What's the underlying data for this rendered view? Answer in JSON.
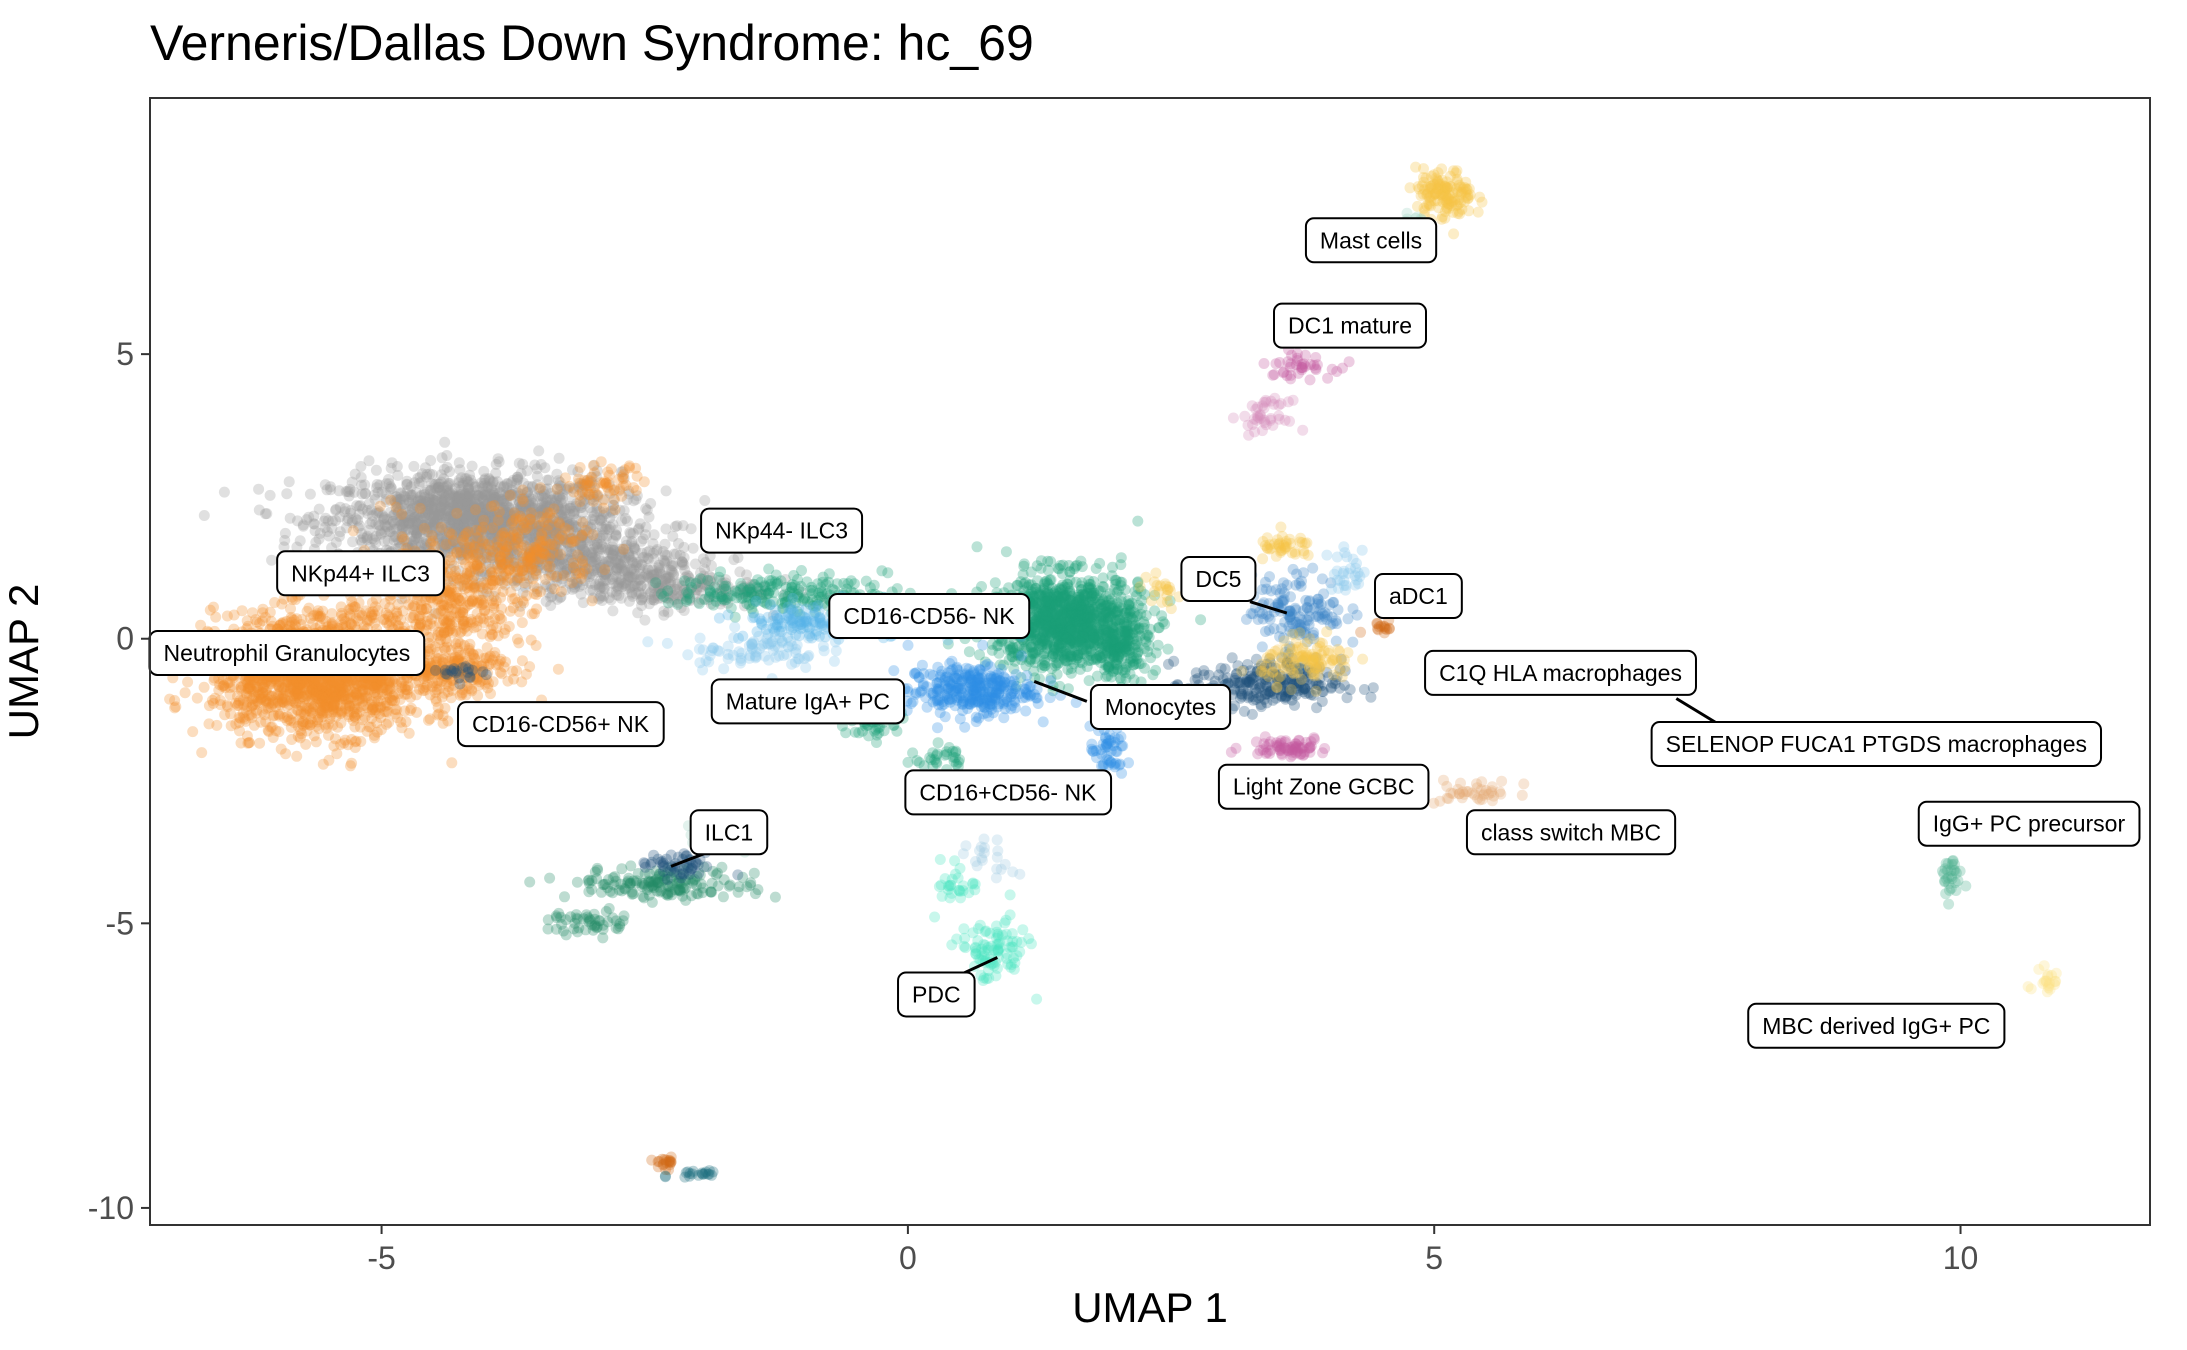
{
  "chart_data": {
    "type": "scatter",
    "title": "Verneris/Dallas Down Syndrome: hc_69",
    "xlabel": "UMAP 1",
    "ylabel": "UMAP 2",
    "xlim": [
      -7.2,
      11.8
    ],
    "ylim": [
      -10.3,
      9.5
    ],
    "xticks": [
      -5,
      0,
      5,
      10
    ],
    "yticks": [
      5,
      0,
      -5,
      -10
    ],
    "grid": false,
    "legend": "none",
    "clusters": [
      {
        "color": "#999999",
        "blobs": [
          [
            -4.1,
            2.1,
            1.25,
            0.75,
            1600
          ],
          [
            -3.1,
            1.4,
            1.0,
            0.5,
            400
          ],
          [
            -2.4,
            0.9,
            0.9,
            0.35,
            260
          ]
        ]
      },
      {
        "color": "#f28e2b",
        "blobs": [
          [
            -5.6,
            -0.6,
            0.9,
            0.95,
            1700
          ],
          [
            -4.4,
            0.6,
            0.75,
            1.1,
            500
          ],
          [
            -3.6,
            1.6,
            0.6,
            0.7,
            200
          ],
          [
            -2.9,
            2.7,
            0.35,
            0.3,
            60
          ],
          [
            -4.3,
            -0.6,
            0.5,
            0.35,
            150
          ]
        ]
      },
      {
        "color": "#1b9e77",
        "blobs": [
          [
            1.5,
            0.3,
            0.65,
            0.75,
            1100
          ],
          [
            2.0,
            -0.2,
            0.25,
            0.45,
            150
          ],
          [
            -1.2,
            0.8,
            0.9,
            0.3,
            200
          ],
          [
            -0.3,
            -1.4,
            0.25,
            0.35,
            50
          ],
          [
            0.3,
            -2.1,
            0.2,
            0.2,
            30
          ]
        ]
      },
      {
        "color": "#238b68",
        "blobs": [
          [
            -2.3,
            -4.3,
            0.8,
            0.25,
            160
          ],
          [
            -3.0,
            -5.0,
            0.35,
            0.2,
            50
          ]
        ]
      },
      {
        "color": "#1f4e79",
        "blobs": [
          [
            -2.2,
            -4.0,
            0.35,
            0.2,
            50
          ],
          [
            3.4,
            -0.8,
            0.65,
            0.4,
            250
          ],
          [
            -4.2,
            -0.6,
            0.2,
            0.15,
            20
          ]
        ]
      },
      {
        "color": "#56b4e9",
        "blobs": [
          [
            0.3,
            0.4,
            0.5,
            0.3,
            120
          ],
          [
            -0.9,
            0.3,
            0.7,
            0.3,
            150
          ]
        ]
      },
      {
        "color": "#2e8ee6",
        "blobs": [
          [
            0.6,
            -0.9,
            0.55,
            0.4,
            320
          ],
          [
            1.9,
            -2.0,
            0.15,
            0.4,
            50
          ]
        ]
      },
      {
        "color": "#3a86c8",
        "blobs": [
          [
            3.7,
            0.5,
            0.4,
            0.6,
            140
          ]
        ]
      },
      {
        "color": "#87c6ec",
        "blobs": [
          [
            4.2,
            1.2,
            0.2,
            0.35,
            30
          ],
          [
            -1.5,
            -0.2,
            0.6,
            0.3,
            80
          ]
        ]
      },
      {
        "color": "#f6c445",
        "blobs": [
          [
            5.1,
            7.8,
            0.25,
            0.4,
            140
          ],
          [
            3.8,
            -0.4,
            0.4,
            0.35,
            110
          ],
          [
            3.6,
            1.6,
            0.25,
            0.2,
            40
          ],
          [
            2.4,
            0.8,
            0.2,
            0.25,
            20
          ]
        ]
      },
      {
        "color": "#9ed4c4",
        "blobs": [
          [
            4.8,
            7.2,
            0.15,
            0.3,
            20
          ],
          [
            -1.8,
            -3.5,
            0.3,
            0.3,
            20
          ]
        ]
      },
      {
        "color": "#c45ba0",
        "blobs": [
          [
            3.6,
            -1.9,
            0.35,
            0.15,
            70
          ],
          [
            3.7,
            4.8,
            0.3,
            0.2,
            40
          ]
        ]
      },
      {
        "color": "#d38cb8",
        "blobs": [
          [
            3.4,
            3.9,
            0.2,
            0.25,
            40
          ]
        ]
      },
      {
        "color": "#e6a874",
        "blobs": [
          [
            5.4,
            -2.7,
            0.35,
            0.2,
            40
          ]
        ]
      },
      {
        "color": "#cf6b16",
        "blobs": [
          [
            -2.3,
            -9.2,
            0.1,
            0.1,
            20
          ],
          [
            4.5,
            0.2,
            0.15,
            0.08,
            15
          ]
        ]
      },
      {
        "color": "#4daf90",
        "blobs": [
          [
            9.9,
            -4.2,
            0.1,
            0.35,
            30
          ]
        ]
      },
      {
        "color": "#48e6c0",
        "blobs": [
          [
            0.8,
            -5.5,
            0.3,
            0.5,
            90
          ],
          [
            0.5,
            -4.3,
            0.2,
            0.4,
            30
          ]
        ]
      },
      {
        "color": "#9ec9e2",
        "blobs": [
          [
            0.8,
            -3.9,
            0.2,
            0.3,
            20
          ]
        ]
      },
      {
        "color": "#1a6e7e",
        "blobs": [
          [
            -2.0,
            -9.4,
            0.2,
            0.08,
            20
          ]
        ]
      },
      {
        "color": "#fbe183",
        "blobs": [
          [
            10.8,
            -6.0,
            0.15,
            0.35,
            20
          ]
        ]
      }
    ],
    "labels": [
      {
        "text": "Mast cells",
        "x": 4.4,
        "y": 7.0
      },
      {
        "text": "DC1 mature",
        "x": 4.2,
        "y": 5.5
      },
      {
        "text": "NKp44- ILC3",
        "x": -1.2,
        "y": 1.9
      },
      {
        "text": "NKp44+ ILC3",
        "x": -5.2,
        "y": 1.15
      },
      {
        "text": "Neutrophil Granulocytes",
        "x": -5.9,
        "y": -0.25
      },
      {
        "text": "CD16-CD56- NK",
        "x": 0.2,
        "y": 0.4
      },
      {
        "text": "DC5",
        "x": 2.95,
        "y": 1.05
      },
      {
        "text": "aDC1",
        "x": 4.85,
        "y": 0.75
      },
      {
        "text": "C1Q HLA macrophages",
        "x": 6.2,
        "y": -0.6
      },
      {
        "text": "Monocytes",
        "x": 2.4,
        "y": -1.2
      },
      {
        "text": "Mature IgA+ PC",
        "x": -0.95,
        "y": -1.1
      },
      {
        "text": "CD16-CD56+ NK",
        "x": -3.3,
        "y": -1.5
      },
      {
        "text": "SELENOP FUCA1 PTGDS macrophages",
        "x": 9.2,
        "y": -1.85
      },
      {
        "text": "Light Zone GCBC",
        "x": 3.95,
        "y": -2.6
      },
      {
        "text": "CD16+CD56- NK",
        "x": 0.95,
        "y": -2.7
      },
      {
        "text": "class switch MBC",
        "x": 6.3,
        "y": -3.4
      },
      {
        "text": "IgG+ PC precursor",
        "x": 10.65,
        "y": -3.25
      },
      {
        "text": "ILC1",
        "x": -1.7,
        "y": -3.4
      },
      {
        "text": "PDC",
        "x": 0.27,
        "y": -6.25
      },
      {
        "text": "MBC derived IgG+ PC",
        "x": 9.2,
        "y": -6.8
      }
    ],
    "leaders": [
      {
        "x1": 3.25,
        "y1": 0.65,
        "x2": 3.6,
        "y2": 0.45
      },
      {
        "x1": 1.2,
        "y1": -0.75,
        "x2": 1.7,
        "y2": -1.1
      },
      {
        "x1": 7.3,
        "y1": -1.05,
        "x2": 7.7,
        "y2": -1.5
      },
      {
        "x1": -2.25,
        "y1": -4.0,
        "x2": -1.9,
        "y2": -3.75
      },
      {
        "x1": 0.5,
        "y1": -5.9,
        "x2": 0.85,
        "y2": -5.6
      }
    ]
  }
}
